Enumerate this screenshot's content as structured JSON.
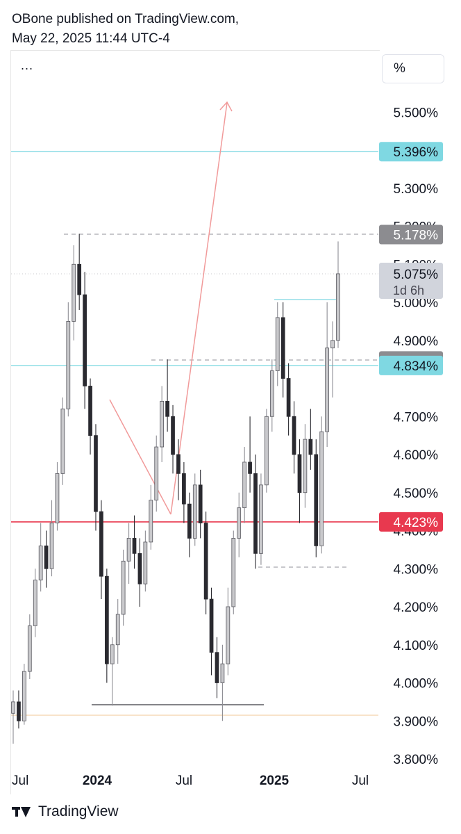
{
  "header": {
    "line1": "OBone published on TradingView.com,",
    "line2": "May 22, 2025 11:44 UTC-4"
  },
  "toolbar": {
    "menu": "...",
    "unit": "%"
  },
  "footer": {
    "brand": "TradingView"
  },
  "colors": {
    "up": "#c9c9cc",
    "down": "#2a2a30",
    "cyan": "#7fd8e2",
    "red": "#e8394f",
    "gray_label": "#8c8c90",
    "orange": "#f5d9b6",
    "arrow": "#f19a9a"
  },
  "chart_data": {
    "type": "candlestick",
    "symbol_unit": "%",
    "y_range": [
      3.8,
      5.6
    ],
    "price_ticks": [
      "5.500%",
      "5.300%",
      "5.200%",
      "5.100%",
      "5.000%",
      "4.900%",
      "4.700%",
      "4.600%",
      "4.500%",
      "4.400%",
      "4.300%",
      "4.200%",
      "4.100%",
      "4.000%",
      "3.900%",
      "3.800%"
    ],
    "time_ticks": [
      {
        "label": "Jul",
        "bold": false
      },
      {
        "label": "2024",
        "bold": true
      },
      {
        "label": "Jul",
        "bold": false
      },
      {
        "label": "2025",
        "bold": true
      },
      {
        "label": "Jul",
        "bold": false
      }
    ],
    "price_labels": [
      {
        "text": "5.396%",
        "value": 5.396,
        "style": "cyan"
      },
      {
        "text": "5.178%",
        "value": 5.178,
        "style": "gray"
      },
      {
        "text": "5.075%",
        "value": 5.075,
        "style": "current",
        "sub": "1d 6h"
      },
      {
        "text": "4.846%",
        "value": 4.846,
        "style": "gray"
      },
      {
        "text": "4.834%",
        "value": 4.834,
        "style": "cyan"
      },
      {
        "text": "4.423%",
        "value": 4.423,
        "style": "red"
      }
    ],
    "horizontal_lines": [
      {
        "value": 5.396,
        "style": "cyan-solid"
      },
      {
        "value": 4.834,
        "style": "cyan-solid"
      },
      {
        "value": 4.423,
        "style": "red-solid"
      },
      {
        "value": 3.915,
        "style": "orange-solid"
      }
    ],
    "candles": [
      [
        3.92,
        3.98,
        3.84,
        3.95
      ],
      [
        3.95,
        3.98,
        3.88,
        3.9
      ],
      [
        3.9,
        4.05,
        3.89,
        4.03
      ],
      [
        4.03,
        4.18,
        4.01,
        4.15
      ],
      [
        4.15,
        4.3,
        4.12,
        4.27
      ],
      [
        4.27,
        4.42,
        4.24,
        4.36
      ],
      [
        4.36,
        4.4,
        4.25,
        4.3
      ],
      [
        4.3,
        4.48,
        4.28,
        4.42
      ],
      [
        4.42,
        4.58,
        4.4,
        4.55
      ],
      [
        4.55,
        4.75,
        4.52,
        4.72
      ],
      [
        4.72,
        5.0,
        4.7,
        4.95
      ],
      [
        4.95,
        5.15,
        4.9,
        5.1
      ],
      [
        5.1,
        5.18,
        4.98,
        5.02
      ],
      [
        5.02,
        5.08,
        4.72,
        4.78
      ],
      [
        4.78,
        4.8,
        4.6,
        4.65
      ],
      [
        4.65,
        4.68,
        4.4,
        4.45
      ],
      [
        4.45,
        4.48,
        4.22,
        4.28
      ],
      [
        4.28,
        4.3,
        4.0,
        4.05
      ],
      [
        4.05,
        4.12,
        3.94,
        4.1
      ],
      [
        4.1,
        4.22,
        4.05,
        4.18
      ],
      [
        4.18,
        4.35,
        4.15,
        4.32
      ],
      [
        4.32,
        4.42,
        4.26,
        4.38
      ],
      [
        4.38,
        4.44,
        4.3,
        4.34
      ],
      [
        4.34,
        4.38,
        4.2,
        4.26
      ],
      [
        4.26,
        4.4,
        4.24,
        4.37
      ],
      [
        4.37,
        4.52,
        4.35,
        4.48
      ],
      [
        4.48,
        4.65,
        4.45,
        4.62
      ],
      [
        4.62,
        4.78,
        4.58,
        4.74
      ],
      [
        4.74,
        4.85,
        4.66,
        4.7
      ],
      [
        4.7,
        4.73,
        4.55,
        4.6
      ],
      [
        4.6,
        4.64,
        4.48,
        4.55
      ],
      [
        4.55,
        4.58,
        4.42,
        4.47
      ],
      [
        4.47,
        4.5,
        4.33,
        4.38
      ],
      [
        4.38,
        4.55,
        4.36,
        4.52
      ],
      [
        4.52,
        4.56,
        4.38,
        4.42
      ],
      [
        4.42,
        4.45,
        4.18,
        4.22
      ],
      [
        4.22,
        4.25,
        4.02,
        4.08
      ],
      [
        4.08,
        4.12,
        3.96,
        4.0
      ],
      [
        4.0,
        4.1,
        3.9,
        4.05
      ],
      [
        4.05,
        4.25,
        4.02,
        4.2
      ],
      [
        4.2,
        4.4,
        4.18,
        4.38
      ],
      [
        4.38,
        4.5,
        4.33,
        4.46
      ],
      [
        4.46,
        4.62,
        4.42,
        4.58
      ],
      [
        4.58,
        4.7,
        4.5,
        4.55
      ],
      [
        4.55,
        4.6,
        4.3,
        4.34
      ],
      [
        4.34,
        4.55,
        4.31,
        4.52
      ],
      [
        4.52,
        4.72,
        4.5,
        4.7
      ],
      [
        4.7,
        4.85,
        4.66,
        4.82
      ],
      [
        4.82,
        5.0,
        4.78,
        4.96
      ],
      [
        4.96,
        5.0,
        4.75,
        4.8
      ],
      [
        4.8,
        4.84,
        4.65,
        4.7
      ],
      [
        4.7,
        4.74,
        4.55,
        4.6
      ],
      [
        4.6,
        4.64,
        4.42,
        4.5
      ],
      [
        4.5,
        4.68,
        4.46,
        4.64
      ],
      [
        4.64,
        4.72,
        4.56,
        4.6
      ],
      [
        4.6,
        4.64,
        4.33,
        4.36
      ],
      [
        4.36,
        4.7,
        4.34,
        4.66
      ],
      [
        4.66,
        5.0,
        4.62,
        4.88
      ],
      [
        4.88,
        4.95,
        4.75,
        4.9
      ],
      [
        4.9,
        5.16,
        4.88,
        5.075
      ]
    ]
  }
}
